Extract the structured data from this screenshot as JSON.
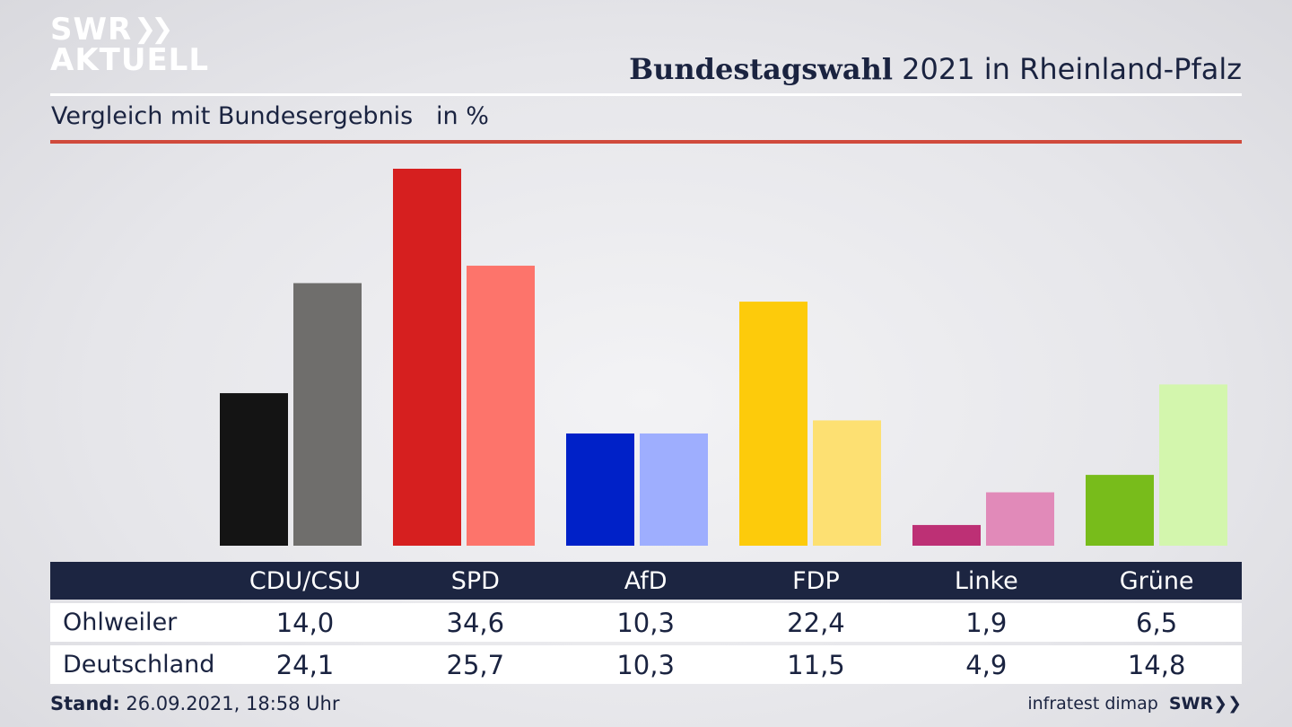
{
  "brand": {
    "line1": "SWR",
    "line2": "AKTUELL",
    "chevrons": "»"
  },
  "header": {
    "title_bold": "Bundestagswahl",
    "title_rest": " 2021 in Rheinland-Pfalz",
    "subtitle": "Vergleich mit Bundesergebnis   in %"
  },
  "colors": {
    "header_bg": "#1c2541",
    "accent_rule": "#d04a3c",
    "text": "#1a2340"
  },
  "chart_data": {
    "type": "bar",
    "title": "Bundestagswahl 2021 in Rheinland-Pfalz",
    "subtitle": "Vergleich mit Bundesergebnis   in %",
    "categories": [
      "CDU/CSU",
      "SPD",
      "AfD",
      "FDP",
      "Linke",
      "Grüne"
    ],
    "series": [
      {
        "name": "Ohlweiler",
        "values": [
          14.0,
          34.6,
          10.3,
          22.4,
          1.9,
          6.5
        ],
        "colors": [
          "#141414",
          "#d61f1f",
          "#0021c8",
          "#fdcb0b",
          "#bd3075",
          "#78bc1b"
        ]
      },
      {
        "name": "Deutschland",
        "values": [
          24.1,
          25.7,
          10.3,
          11.5,
          4.9,
          14.8
        ],
        "colors": [
          "#6f6e6c",
          "#fd746b",
          "#9eaefe",
          "#fde072",
          "#e18ab9",
          "#d3f6ad"
        ]
      }
    ],
    "ylim": [
      0,
      35
    ],
    "grid": false,
    "legend": "table below chart"
  },
  "table": {
    "header": [
      "CDU/CSU",
      "SPD",
      "AfD",
      "FDP",
      "Linke",
      "Grüne"
    ],
    "rows": [
      {
        "label": "Ohlweiler",
        "values": [
          "14,0",
          "34,6",
          "10,3",
          "22,4",
          "1,9",
          "6,5"
        ]
      },
      {
        "label": "Deutschland",
        "values": [
          "24,1",
          "25,7",
          "10,3",
          "11,5",
          "4,9",
          "14,8"
        ]
      }
    ]
  },
  "footer": {
    "stand_label": "Stand:",
    "stand_value": " 26.09.2021, 18:58 Uhr",
    "source": "infratest dimap",
    "brand": "SWR"
  }
}
